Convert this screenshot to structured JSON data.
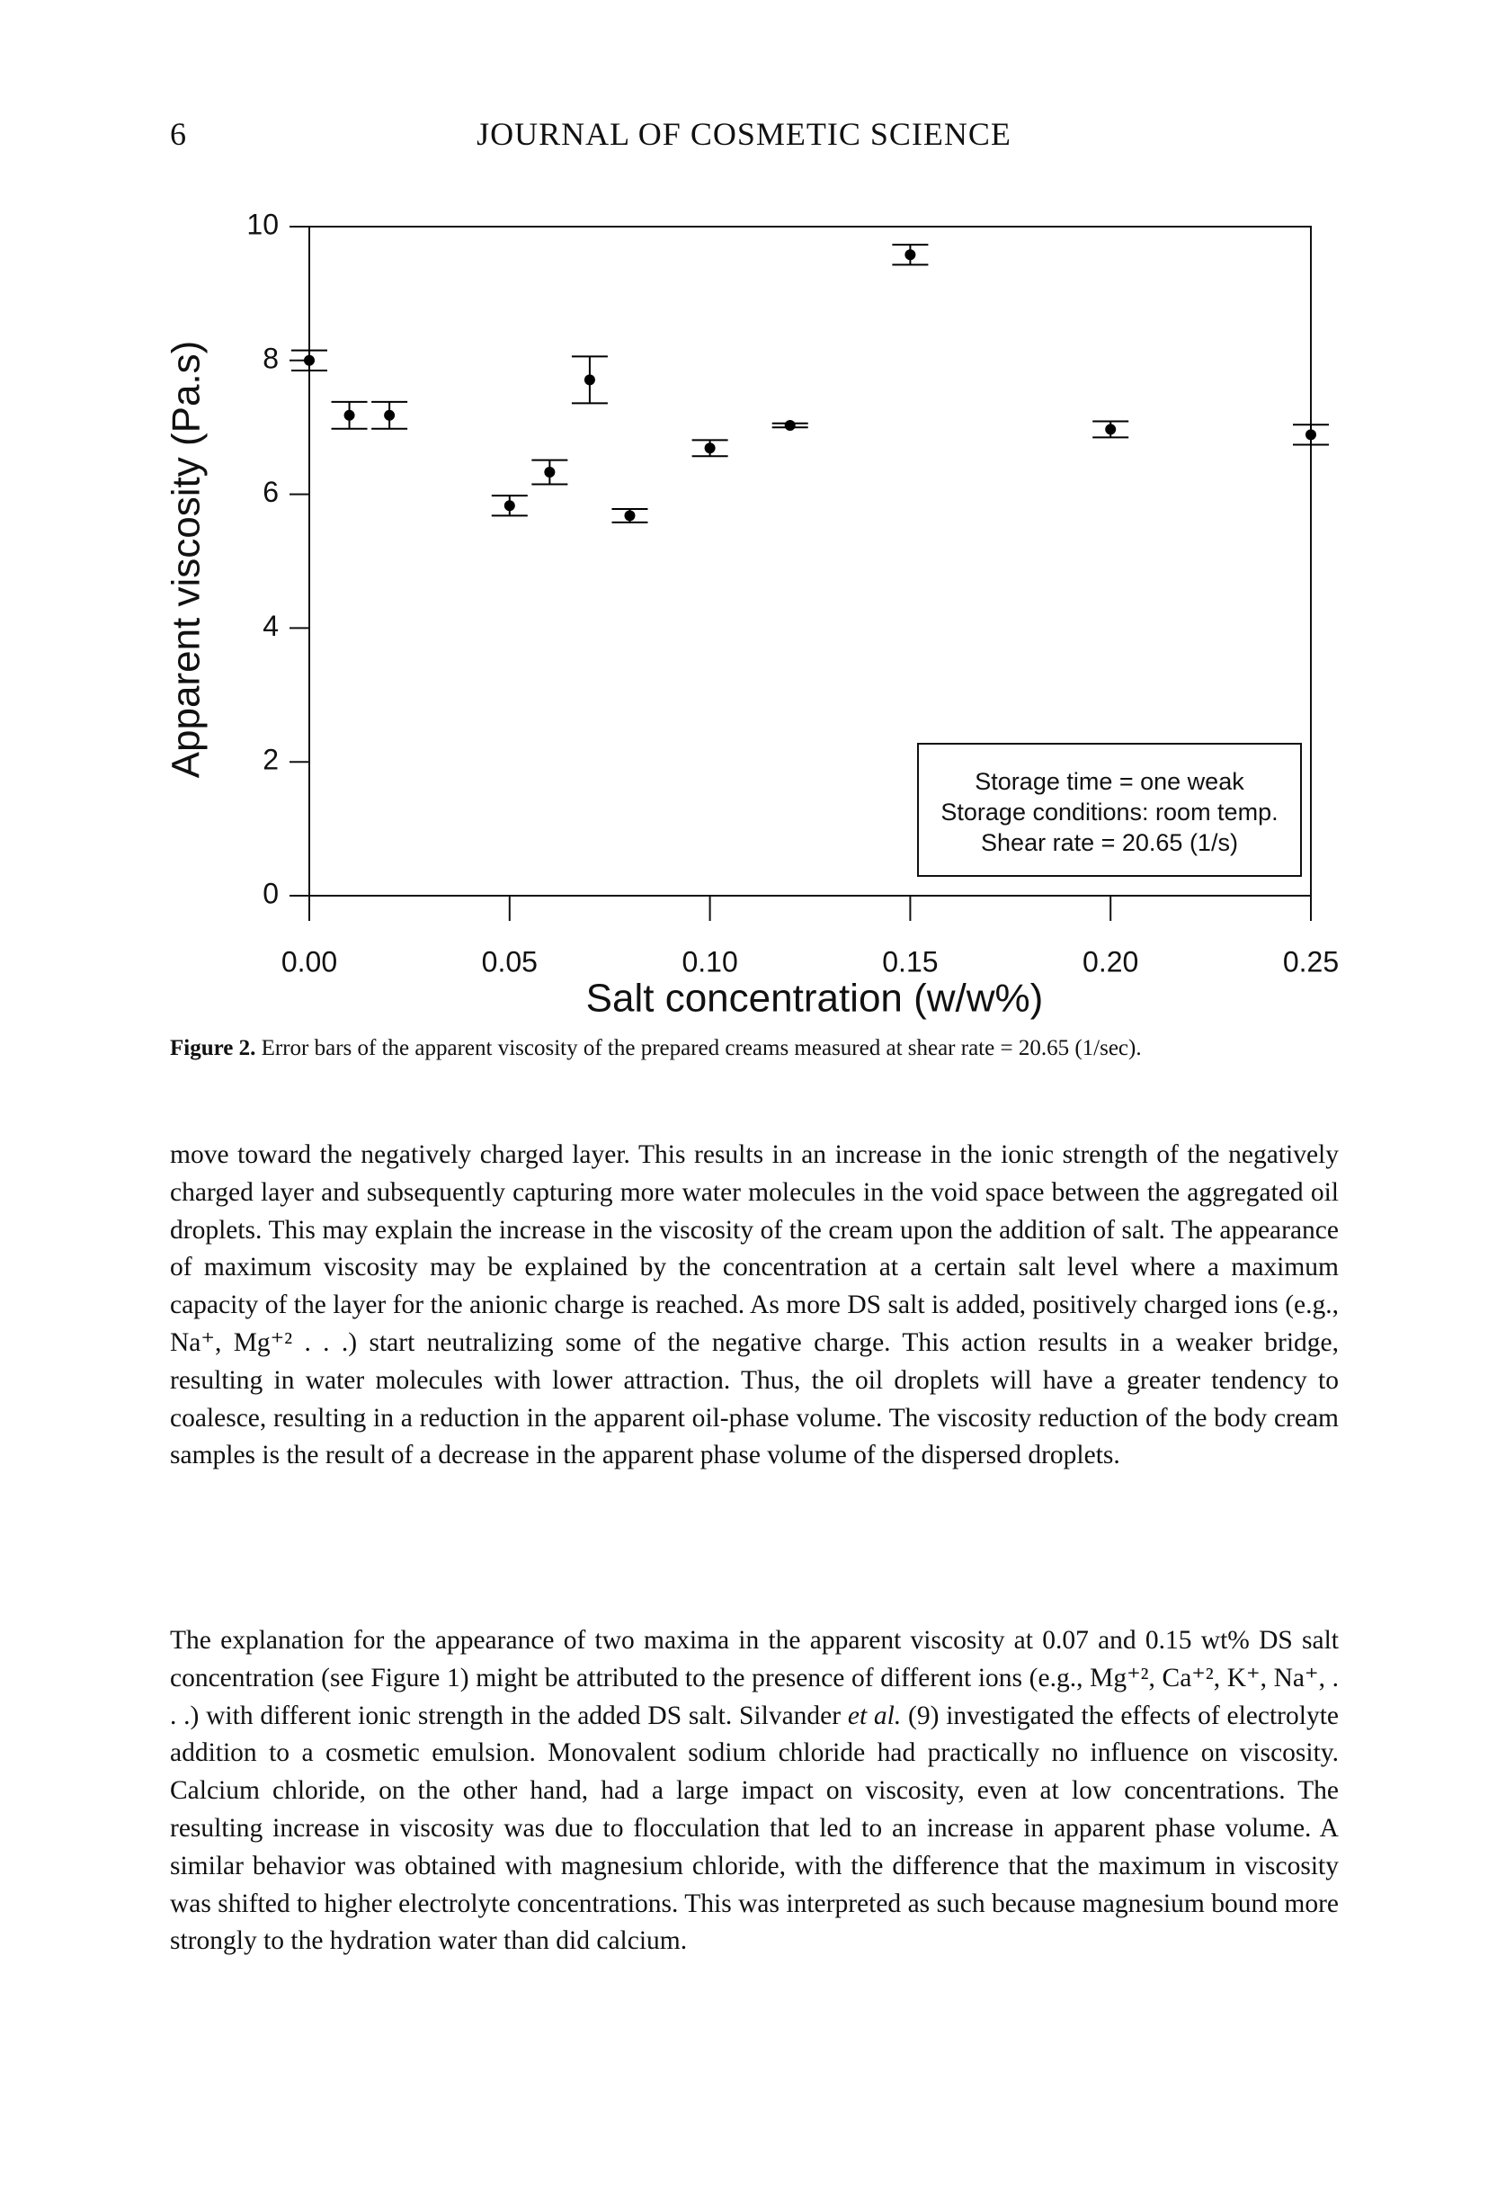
{
  "header": {
    "page_number": "6",
    "journal": "JOURNAL OF COSMETIC SCIENCE"
  },
  "chart_data": {
    "type": "errorbar",
    "x_label": "Salt concentration (w/w%)",
    "y_label": "Apparent viscosity (Pa.s)",
    "x": [
      0.0,
      0.01,
      0.02,
      0.05,
      0.06,
      0.07,
      0.08,
      0.1,
      0.12,
      0.15,
      0.2,
      0.25
    ],
    "values": [
      8.0,
      7.18,
      7.18,
      5.83,
      6.33,
      7.71,
      5.68,
      6.69,
      7.03,
      9.58,
      6.97,
      6.89
    ],
    "errors": [
      0.15,
      0.2,
      0.2,
      0.15,
      0.18,
      0.35,
      0.1,
      0.12,
      0.03,
      0.15,
      0.12,
      0.15
    ],
    "color": "#000000",
    "xlim": [
      0,
      0.25
    ],
    "xticks": [
      {
        "value": 0,
        "label": "0.00"
      },
      0.05,
      {
        "value": 0.1,
        "label": "0.10"
      },
      0.15,
      {
        "value": 0.2,
        "label": "0.20"
      },
      0.25
    ],
    "ylim": [
      0,
      10
    ],
    "yticks": [
      0,
      2,
      4,
      6,
      8,
      10
    ],
    "annotations": [
      "Storage time = one weak",
      "Storage conditions: room temp.",
      "Shear rate = 20.65 (1/s)"
    ],
    "annotation_corner": "lower right"
  },
  "caption": {
    "label": "Figure 2.",
    "text": "Error bars of the apparent viscosity of the prepared creams measured at shear rate = 20.65 (1/sec)."
  },
  "paragraphs": [
    [
      "move toward the negatively charged layer. This results in an increase in the ionic strength of the negatively charged layer and subsequently capturing more water molecules in the void space between the aggregated oil droplets. This may explain the increase in the viscosity of the cream upon the addition of salt. The appearance of maximum viscosity may be explained by the concentration at a certain salt level where a maximum capacity of the layer for the anionic charge is reached. As more DS salt is added, positively charged ions (e.g., Na⁺, Mg⁺² . . .) start neutralizing some of the negative charge. This action results in a weaker bridge, resulting in water molecules with lower attraction. Thus, the oil droplets will have a greater tendency to coalesce, resulting in a reduction in the apparent oil-phase volume. The viscosity reduction of the body cream samples is the result of a decrease in the apparent phase volume of the dispersed droplets."
    ],
    [
      "The explanation for the appearance of two maxima in the apparent viscosity at 0.07 and 0.15 wt% DS salt concentration (see Figure 1) might be attributed to the presence of different ions (e.g., Mg⁺², Ca⁺², K⁺, Na⁺, . . .) with different ionic strength in the added DS salt. Silvander ",
      "et al.",
      " (9) investigated the effects of electrolyte addition to a cosmetic emulsion. Monovalent sodium chloride had practically no influence on viscosity. Calcium chloride, on the other hand, had a large impact on viscosity, even at low concentrations. The resulting increase in viscosity was due to flocculation that led to an increase in apparent phase volume. A similar behavior was obtained with magnesium chloride, with the difference that the maximum in viscosity was shifted to higher electrolyte concentrations. This was interpreted as such because magnesium bound more strongly to the hydration water than did calcium."
    ]
  ]
}
